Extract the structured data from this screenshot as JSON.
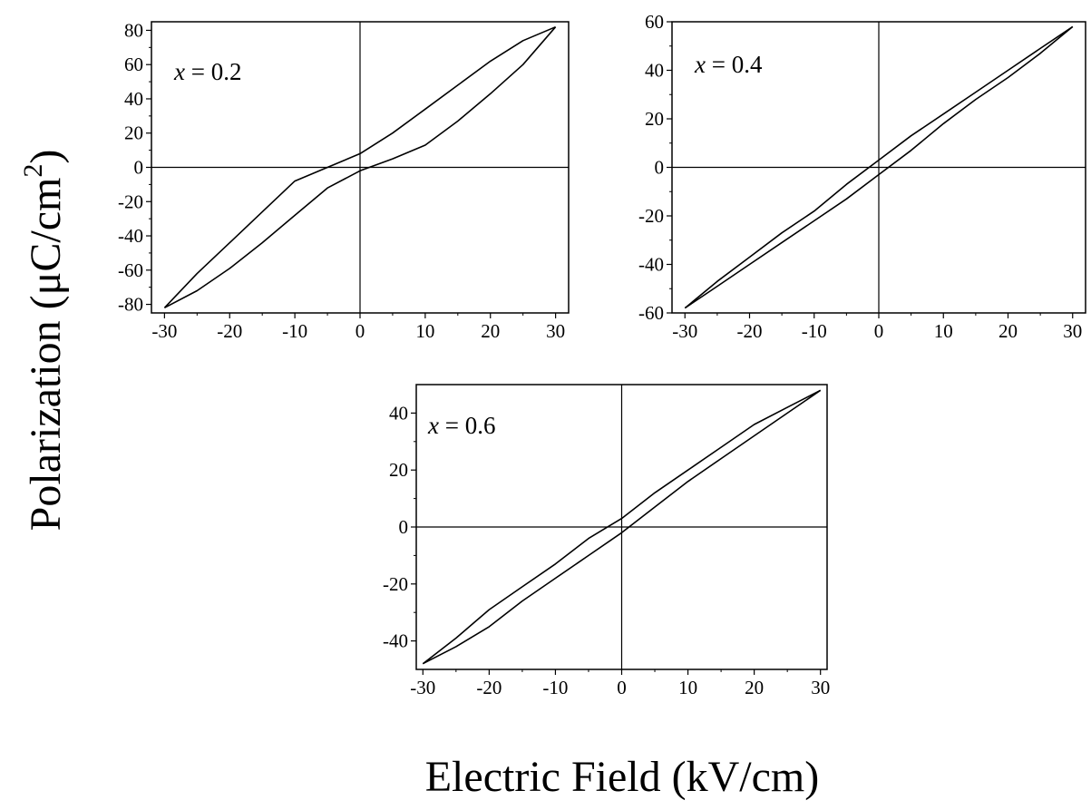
{
  "figure": {
    "ylabel": "Polarization (μC/cm",
    "ylabel_sup": "2",
    "ylabel_close": ")",
    "xlabel": "Electric Field (kV/cm)"
  },
  "chart_data": [
    {
      "type": "line",
      "annotation_var": "x",
      "annotation_rest": " = 0.2",
      "xlim": [
        -32,
        32
      ],
      "ylim": [
        -85,
        85
      ],
      "xticks": [
        -30,
        -20,
        -10,
        0,
        10,
        20,
        30
      ],
      "yticks": [
        -80,
        -60,
        -40,
        -20,
        0,
        20,
        40,
        60,
        80
      ],
      "xtick_labels": [
        "-30",
        "-20",
        "-10",
        "0",
        "10",
        "20",
        "30"
      ],
      "ytick_labels": [
        "-80",
        "-60",
        "-40",
        "-20",
        "0",
        "20",
        "40",
        "60",
        "80"
      ],
      "xlabel": "",
      "ylabel": "",
      "series": [
        {
          "x": [
            -30,
            -25,
            -20,
            -15,
            -10,
            -5,
            0,
            5,
            10,
            15,
            20,
            25,
            30
          ],
          "y": [
            -82,
            -62,
            -44,
            -26,
            -8,
            0,
            8,
            20,
            34,
            48,
            62,
            74,
            82
          ]
        },
        {
          "x": [
            30,
            25,
            20,
            15,
            10,
            5,
            0,
            -5,
            -10,
            -15,
            -20,
            -25,
            -30
          ],
          "y": [
            82,
            60,
            43,
            27,
            13,
            5,
            -2,
            -12,
            -28,
            -44,
            -59,
            -72,
            -82
          ]
        }
      ]
    },
    {
      "type": "line",
      "annotation_var": "x",
      "annotation_rest": " = 0.4",
      "xlim": [
        -32,
        32
      ],
      "ylim": [
        -60,
        60
      ],
      "xticks": [
        -30,
        -20,
        -10,
        0,
        10,
        20,
        30
      ],
      "yticks": [
        -60,
        -40,
        -20,
        0,
        20,
        40,
        60
      ],
      "xtick_labels": [
        "-30",
        "-20",
        "-10",
        "0",
        "10",
        "20",
        "30"
      ],
      "ytick_labels": [
        "-60",
        "-40",
        "-20",
        "0",
        "20",
        "40",
        "60"
      ],
      "xlabel": "",
      "ylabel": "",
      "series": [
        {
          "x": [
            -30,
            -25,
            -20,
            -15,
            -10,
            -5,
            0,
            5,
            10,
            15,
            20,
            25,
            30
          ],
          "y": [
            -58,
            -47,
            -37,
            -27,
            -18,
            -7,
            3,
            13,
            22,
            31,
            40,
            49,
            58
          ]
        },
        {
          "x": [
            30,
            25,
            20,
            15,
            10,
            5,
            0,
            -5,
            -10,
            -15,
            -20,
            -25,
            -30
          ],
          "y": [
            58,
            47,
            37,
            28,
            18,
            7,
            -3,
            -13,
            -22,
            -31,
            -40,
            -49,
            -58
          ]
        }
      ]
    },
    {
      "type": "line",
      "annotation_var": "x",
      "annotation_rest": " = 0.6",
      "xlim": [
        -31,
        31
      ],
      "ylim": [
        -50,
        50
      ],
      "xticks": [
        -30,
        -20,
        -10,
        0,
        10,
        20,
        30
      ],
      "yticks": [
        -40,
        -20,
        0,
        20,
        40
      ],
      "xtick_labels": [
        "-30",
        "-20",
        "-10",
        "0",
        "10",
        "20",
        "30"
      ],
      "ytick_labels": [
        "-40",
        "-20",
        "0",
        "20",
        "40"
      ],
      "xlabel": "",
      "ylabel": "",
      "series": [
        {
          "x": [
            -30,
            -25,
            -22,
            -20,
            -15,
            -10,
            -5,
            0,
            5,
            10,
            15,
            20,
            25,
            30
          ],
          "y": [
            -48,
            -39,
            -33,
            -29,
            -21,
            -13,
            -4,
            3,
            12,
            20,
            28,
            36,
            42,
            48
          ]
        },
        {
          "x": [
            30,
            25,
            20,
            15,
            10,
            5,
            0,
            -5,
            -10,
            -15,
            -20,
            -25,
            -30
          ],
          "y": [
            48,
            40,
            32,
            24,
            16,
            7,
            -2,
            -10,
            -18,
            -26,
            -35,
            -42,
            -48
          ]
        }
      ]
    }
  ]
}
